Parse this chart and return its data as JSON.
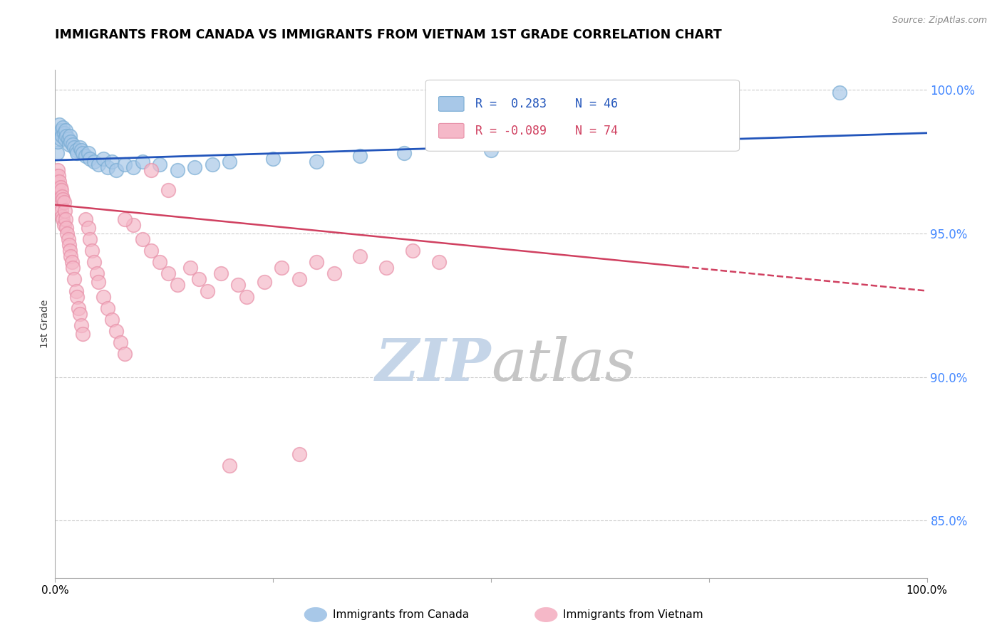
{
  "title": "IMMIGRANTS FROM CANADA VS IMMIGRANTS FROM VIETNAM 1ST GRADE CORRELATION CHART",
  "source_text": "Source: ZipAtlas.com",
  "ylabel": "1st Grade",
  "y_tick_labels": [
    "100.0%",
    "95.0%",
    "90.0%",
    "85.0%"
  ],
  "y_tick_values": [
    1.0,
    0.95,
    0.9,
    0.85
  ],
  "legend_canada": "Immigrants from Canada",
  "legend_vietnam": "Immigrants from Vietnam",
  "R_canada": 0.283,
  "N_canada": 46,
  "R_vietnam": -0.089,
  "N_vietnam": 74,
  "canada_color": "#a8c8e8",
  "canada_edge_color": "#7aadd4",
  "vietnam_color": "#f5b8c8",
  "vietnam_edge_color": "#e890a8",
  "canada_trend_color": "#2255bb",
  "vietnam_trend_color": "#d04060",
  "grid_color": "#cccccc",
  "right_axis_color": "#4488ff",
  "watermark_zip_color": "#c5d5e8",
  "watermark_atlas_color": "#c5c5c5",
  "background_color": "#ffffff",
  "canada_points_x": [
    0.002,
    0.003,
    0.004,
    0.005,
    0.006,
    0.007,
    0.008,
    0.009,
    0.01,
    0.011,
    0.012,
    0.013,
    0.015,
    0.016,
    0.017,
    0.018,
    0.02,
    0.022,
    0.024,
    0.025,
    0.028,
    0.03,
    0.032,
    0.035,
    0.038,
    0.04,
    0.045,
    0.05,
    0.055,
    0.06,
    0.065,
    0.07,
    0.08,
    0.09,
    0.1,
    0.12,
    0.14,
    0.16,
    0.18,
    0.2,
    0.25,
    0.3,
    0.35,
    0.4,
    0.5,
    0.9
  ],
  "canada_points_y": [
    0.978,
    0.982,
    0.985,
    0.988,
    0.983,
    0.986,
    0.984,
    0.987,
    0.985,
    0.983,
    0.986,
    0.984,
    0.983,
    0.981,
    0.984,
    0.982,
    0.981,
    0.98,
    0.979,
    0.978,
    0.98,
    0.979,
    0.978,
    0.977,
    0.978,
    0.976,
    0.975,
    0.974,
    0.976,
    0.973,
    0.975,
    0.972,
    0.974,
    0.973,
    0.975,
    0.974,
    0.972,
    0.973,
    0.974,
    0.975,
    0.976,
    0.975,
    0.977,
    0.978,
    0.979,
    0.999
  ],
  "vietnam_points_x": [
    0.001,
    0.002,
    0.003,
    0.003,
    0.004,
    0.004,
    0.005,
    0.005,
    0.006,
    0.006,
    0.007,
    0.007,
    0.008,
    0.008,
    0.009,
    0.009,
    0.01,
    0.01,
    0.011,
    0.012,
    0.013,
    0.014,
    0.015,
    0.016,
    0.017,
    0.018,
    0.019,
    0.02,
    0.022,
    0.024,
    0.025,
    0.027,
    0.028,
    0.03,
    0.032,
    0.035,
    0.038,
    0.04,
    0.042,
    0.045,
    0.048,
    0.05,
    0.055,
    0.06,
    0.065,
    0.07,
    0.075,
    0.08,
    0.09,
    0.1,
    0.11,
    0.12,
    0.13,
    0.14,
    0.155,
    0.165,
    0.175,
    0.19,
    0.21,
    0.22,
    0.24,
    0.26,
    0.28,
    0.3,
    0.32,
    0.35,
    0.38,
    0.41,
    0.44,
    0.08,
    0.11,
    0.13,
    0.2,
    0.28
  ],
  "vietnam_points_y": [
    0.97,
    0.968,
    0.966,
    0.972,
    0.965,
    0.97,
    0.962,
    0.968,
    0.96,
    0.966,
    0.958,
    0.965,
    0.956,
    0.963,
    0.955,
    0.962,
    0.953,
    0.961,
    0.958,
    0.955,
    0.952,
    0.95,
    0.948,
    0.946,
    0.944,
    0.942,
    0.94,
    0.938,
    0.934,
    0.93,
    0.928,
    0.924,
    0.922,
    0.918,
    0.915,
    0.955,
    0.952,
    0.948,
    0.944,
    0.94,
    0.936,
    0.933,
    0.928,
    0.924,
    0.92,
    0.916,
    0.912,
    0.908,
    0.953,
    0.948,
    0.944,
    0.94,
    0.936,
    0.932,
    0.938,
    0.934,
    0.93,
    0.936,
    0.932,
    0.928,
    0.933,
    0.938,
    0.934,
    0.94,
    0.936,
    0.942,
    0.938,
    0.944,
    0.94,
    0.955,
    0.972,
    0.965,
    0.869,
    0.873
  ]
}
